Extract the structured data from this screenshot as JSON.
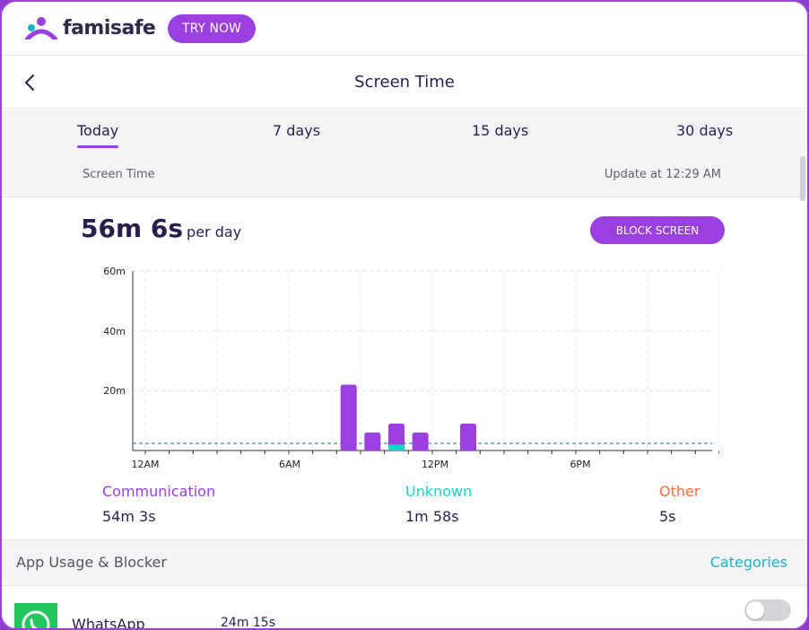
{
  "brand": {
    "logo_text": "famisafe",
    "try_button": "TRY NOW"
  },
  "header": {
    "title": "Screen Time"
  },
  "tabs": [
    {
      "label": "Today",
      "active": true
    },
    {
      "label": "7 days",
      "active": false
    },
    {
      "label": "15 days",
      "active": false
    },
    {
      "label": "30 days",
      "active": false
    }
  ],
  "subheader": {
    "left": "Screen Time",
    "right": "Update at 12:29 AM"
  },
  "summary": {
    "total": "56m 6s",
    "unit": "per day",
    "block_button": "BLOCK SCREEN"
  },
  "colors": {
    "accent": "#9a3fe0",
    "communication": "#9b3fe0",
    "unknown": "#19d3c5",
    "other": "#ff6a3d",
    "categories": "#17b4c9"
  },
  "chart_data": {
    "type": "bar",
    "y_ticks": [
      "60m",
      "40m",
      "20m"
    ],
    "x_ticks": [
      "12AM",
      "6AM",
      "12PM",
      "6PM"
    ],
    "ylim": [
      0,
      60
    ],
    "x_hours": [
      8,
      9,
      10,
      11,
      13
    ],
    "series": [
      {
        "name": "Communication",
        "values": [
          22,
          6,
          9,
          6,
          9
        ]
      },
      {
        "name": "Unknown",
        "values": [
          0,
          0,
          2,
          0,
          0
        ]
      }
    ],
    "average_line": 2.4,
    "grid": true
  },
  "legend": [
    {
      "name": "Communication",
      "value": "54m 3s"
    },
    {
      "name": "Unknown",
      "value": "1m 58s"
    },
    {
      "name": "Other",
      "value": "5s"
    }
  ],
  "usage": {
    "title": "App Usage & Blocker",
    "categories_link": "Categories"
  },
  "apps": [
    {
      "name": "WhatsApp",
      "time": "24m 15s",
      "blocked": false
    }
  ]
}
